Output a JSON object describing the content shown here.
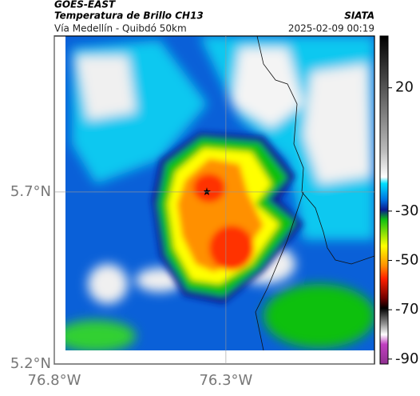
{
  "header": {
    "title": "GOES-EAST",
    "subtitle": "Temperatura de Brillo CH13",
    "source": "SIATA",
    "region": "Vía Medellín - Quibdó 50km",
    "timestamp": "2025-02-09 00:19"
  },
  "map": {
    "xlim": [
      -76.8,
      -75.867
    ],
    "ylim": [
      5.2,
      6.153
    ],
    "xticks": [
      {
        "value": -76.8,
        "label": "76.8°W"
      },
      {
        "value": -76.3,
        "label": "76.3°W"
      }
    ],
    "yticks": [
      {
        "value": 5.7,
        "label": "5.7°N"
      },
      {
        "value": 5.2,
        "label": "5.2°N"
      }
    ]
  },
  "colorbar": {
    "lim": [
      -92,
      41
    ],
    "ticks": [
      20,
      -30,
      -50,
      -70,
      -90
    ]
  }
}
